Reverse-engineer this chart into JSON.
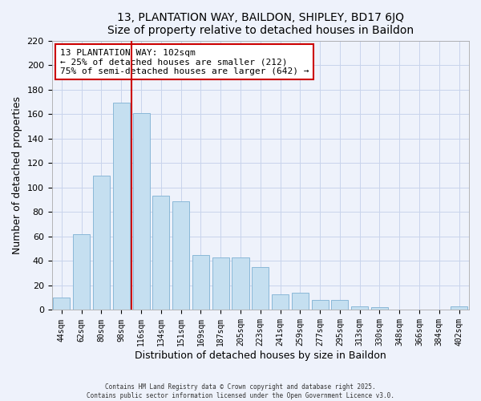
{
  "title": "13, PLANTATION WAY, BAILDON, SHIPLEY, BD17 6JQ",
  "subtitle": "Size of property relative to detached houses in Baildon",
  "xlabel": "Distribution of detached houses by size in Baildon",
  "ylabel": "Number of detached properties",
  "bar_labels": [
    "44sqm",
    "62sqm",
    "80sqm",
    "98sqm",
    "116sqm",
    "134sqm",
    "151sqm",
    "169sqm",
    "187sqm",
    "205sqm",
    "223sqm",
    "241sqm",
    "259sqm",
    "277sqm",
    "295sqm",
    "313sqm",
    "330sqm",
    "348sqm",
    "366sqm",
    "384sqm",
    "402sqm"
  ],
  "bar_values": [
    10,
    62,
    110,
    169,
    161,
    93,
    89,
    45,
    43,
    43,
    35,
    13,
    14,
    8,
    8,
    3,
    2,
    0,
    0,
    0,
    3
  ],
  "bar_color": "#c5dff0",
  "bar_edge_color": "#8ab8d8",
  "vline_x": 3.5,
  "vline_color": "#cc0000",
  "annotation_title": "13 PLANTATION WAY: 102sqm",
  "annotation_line1": "← 25% of detached houses are smaller (212)",
  "annotation_line2": "75% of semi-detached houses are larger (642) →",
  "annotation_box_color": "#ffffff",
  "annotation_box_edge": "#cc0000",
  "ylim": [
    0,
    220
  ],
  "yticks": [
    0,
    20,
    40,
    60,
    80,
    100,
    120,
    140,
    160,
    180,
    200,
    220
  ],
  "footnote1": "Contains HM Land Registry data © Crown copyright and database right 2025.",
  "footnote2": "Contains public sector information licensed under the Open Government Licence v3.0.",
  "bg_color": "#eef2fb",
  "grid_color": "#c8d4ec"
}
